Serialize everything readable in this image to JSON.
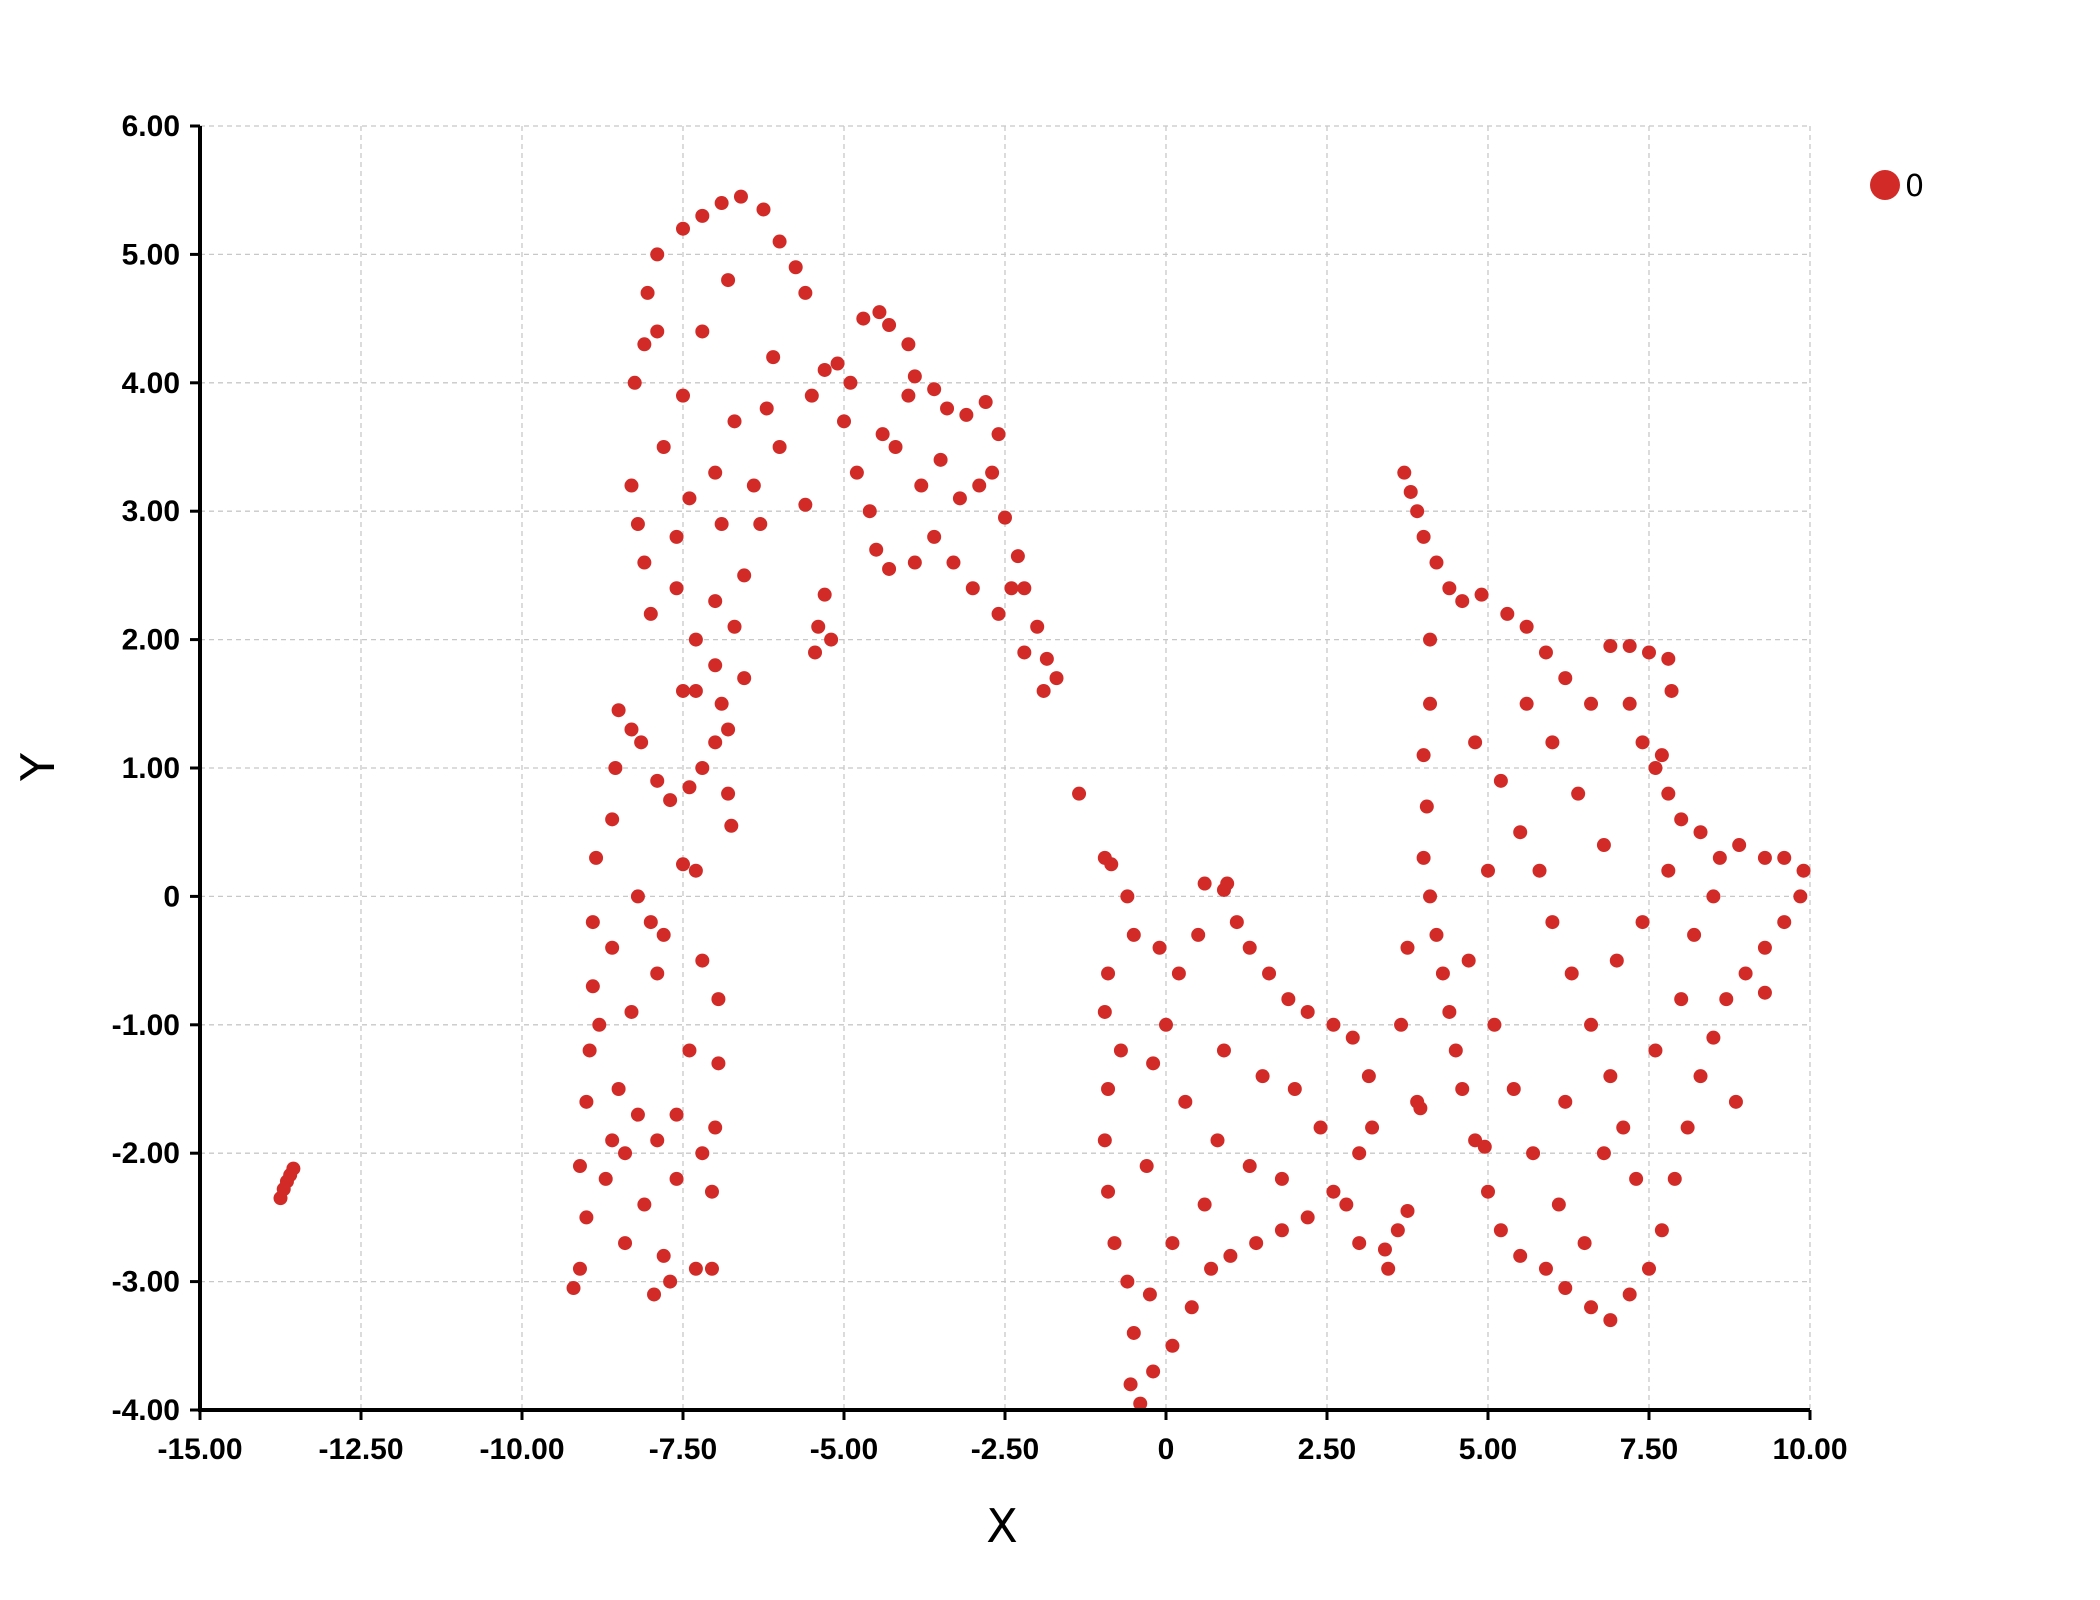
{
  "chart_data": {
    "type": "scatter",
    "title": "",
    "xlabel": "X",
    "ylabel": "Y",
    "xlim": [
      -15,
      10
    ],
    "ylim": [
      -4,
      6
    ],
    "x_ticks": [
      -15,
      -12.5,
      -10,
      -7.5,
      -5,
      -2.5,
      0,
      2.5,
      5,
      7.5,
      10
    ],
    "x_tick_labels": [
      "-15.00",
      "-12.50",
      "-10.00",
      "-7.50",
      "-5.00",
      "-2.50",
      "0",
      "2.50",
      "5.00",
      "7.50",
      "10.00"
    ],
    "y_ticks": [
      -4,
      -3,
      -2,
      -1,
      0,
      1,
      2,
      3,
      4,
      5,
      6
    ],
    "y_tick_labels": [
      "-4.00",
      "-3.00",
      "-2.00",
      "-1.00",
      "0",
      "1.00",
      "2.00",
      "3.00",
      "4.00",
      "5.00",
      "6.00"
    ],
    "grid": true,
    "legend": {
      "position": "top-right",
      "entries": [
        "0"
      ]
    },
    "series": [
      {
        "name": "0",
        "color": "#d22b27",
        "points": [
          [
            -13.75,
            -2.35
          ],
          [
            -13.7,
            -2.28
          ],
          [
            -13.65,
            -2.22
          ],
          [
            -13.6,
            -2.17
          ],
          [
            -13.55,
            -2.12
          ],
          [
            -9.2,
            -3.05
          ],
          [
            -9.1,
            -2.9
          ],
          [
            -9.0,
            -2.5
          ],
          [
            -9.1,
            -2.1
          ],
          [
            -9.0,
            -1.6
          ],
          [
            -8.95,
            -1.2
          ],
          [
            -8.9,
            -0.7
          ],
          [
            -8.9,
            -0.2
          ],
          [
            -8.85,
            0.3
          ],
          [
            -8.6,
            0.6
          ],
          [
            -8.55,
            1.0
          ],
          [
            -8.5,
            1.45
          ],
          [
            -8.3,
            1.3
          ],
          [
            -8.15,
            1.2
          ],
          [
            -7.95,
            -3.1
          ],
          [
            -7.8,
            -2.8
          ],
          [
            -7.7,
            -3.0
          ],
          [
            -7.3,
            -2.9
          ],
          [
            -7.05,
            -2.9
          ],
          [
            -7.05,
            -2.3
          ],
          [
            -7.0,
            -1.8
          ],
          [
            -6.95,
            -1.3
          ],
          [
            -6.95,
            -0.8
          ],
          [
            -7.2,
            -0.5
          ],
          [
            -7.5,
            0.25
          ],
          [
            -7.3,
            0.2
          ],
          [
            -7.8,
            -0.3
          ],
          [
            -8.3,
            -0.9
          ],
          [
            -8.5,
            -1.5
          ],
          [
            -8.7,
            -2.2
          ],
          [
            -8.4,
            -2.7
          ],
          [
            -8.1,
            -2.4
          ],
          [
            -7.6,
            -1.7
          ],
          [
            -7.4,
            -1.2
          ],
          [
            -7.9,
            -0.6
          ],
          [
            -8.4,
            -2.0
          ],
          [
            -8.6,
            -1.9
          ],
          [
            -8.2,
            -1.7
          ],
          [
            -7.9,
            -1.9
          ],
          [
            -7.6,
            -2.2
          ],
          [
            -7.2,
            -2.0
          ],
          [
            -8.8,
            -1.0
          ],
          [
            -8.6,
            -0.4
          ],
          [
            -8.2,
            0.0
          ],
          [
            -8.0,
            -0.2
          ],
          [
            -7.9,
            0.9
          ],
          [
            -7.7,
            0.75
          ],
          [
            -7.4,
            0.85
          ],
          [
            -7.2,
            1.0
          ],
          [
            -7.0,
            1.2
          ],
          [
            -6.9,
            1.5
          ],
          [
            -6.8,
            0.8
          ],
          [
            -6.75,
            0.55
          ],
          [
            -7.0,
            1.8
          ],
          [
            -7.3,
            1.6
          ],
          [
            -8.3,
            3.2
          ],
          [
            -8.25,
            4.0
          ],
          [
            -8.1,
            4.3
          ],
          [
            -8.05,
            4.7
          ],
          [
            -7.9,
            5.0
          ],
          [
            -7.5,
            5.2
          ],
          [
            -7.2,
            5.3
          ],
          [
            -6.9,
            5.4
          ],
          [
            -6.6,
            5.45
          ],
          [
            -6.25,
            5.35
          ],
          [
            -6.0,
            5.1
          ],
          [
            -5.75,
            4.9
          ],
          [
            -5.6,
            4.7
          ],
          [
            -6.1,
            4.2
          ],
          [
            -6.2,
            3.8
          ],
          [
            -6.0,
            3.5
          ],
          [
            -6.4,
            3.2
          ],
          [
            -6.3,
            2.9
          ],
          [
            -6.55,
            2.5
          ],
          [
            -6.7,
            2.1
          ],
          [
            -7.0,
            2.3
          ],
          [
            -7.3,
            2.0
          ],
          [
            -7.6,
            2.4
          ],
          [
            -8.0,
            2.2
          ],
          [
            -8.1,
            2.6
          ],
          [
            -8.2,
            2.9
          ],
          [
            -7.8,
            3.5
          ],
          [
            -7.5,
            3.9
          ],
          [
            -7.2,
            4.4
          ],
          [
            -6.8,
            4.8
          ],
          [
            -7.4,
            3.1
          ],
          [
            -7.0,
            3.3
          ],
          [
            -7.6,
            2.8
          ],
          [
            -7.9,
            4.4
          ],
          [
            -6.9,
            2.9
          ],
          [
            -6.7,
            3.7
          ],
          [
            -5.6,
            3.05
          ],
          [
            -6.55,
            1.7
          ],
          [
            -6.8,
            1.3
          ],
          [
            -7.5,
            1.6
          ],
          [
            -5.5,
            3.9
          ],
          [
            -5.3,
            4.1
          ],
          [
            -5.1,
            4.15
          ],
          [
            -4.9,
            4.0
          ],
          [
            -4.7,
            4.5
          ],
          [
            -4.45,
            4.55
          ],
          [
            -4.3,
            4.45
          ],
          [
            -4.0,
            4.3
          ],
          [
            -3.9,
            4.05
          ],
          [
            -3.6,
            3.95
          ],
          [
            -3.4,
            3.8
          ],
          [
            -3.1,
            3.75
          ],
          [
            -2.8,
            3.85
          ],
          [
            -2.6,
            3.6
          ],
          [
            -2.7,
            3.3
          ],
          [
            -2.5,
            2.95
          ],
          [
            -2.3,
            2.65
          ],
          [
            -2.4,
            2.4
          ],
          [
            -2.0,
            2.1
          ],
          [
            -1.85,
            1.85
          ],
          [
            -1.7,
            1.7
          ],
          [
            -1.9,
            1.6
          ],
          [
            -2.2,
            1.9
          ],
          [
            -2.6,
            2.2
          ],
          [
            -3.0,
            2.4
          ],
          [
            -3.3,
            2.6
          ],
          [
            -3.6,
            2.8
          ],
          [
            -3.9,
            2.6
          ],
          [
            -4.3,
            2.55
          ],
          [
            -4.5,
            2.7
          ],
          [
            -4.6,
            3.0
          ],
          [
            -4.8,
            3.3
          ],
          [
            -5.0,
            3.7
          ],
          [
            -4.2,
            3.5
          ],
          [
            -3.8,
            3.2
          ],
          [
            -3.2,
            3.1
          ],
          [
            -4.0,
            3.9
          ],
          [
            -4.4,
            3.6
          ],
          [
            -5.3,
            2.35
          ],
          [
            -5.4,
            2.1
          ],
          [
            -5.45,
            1.9
          ],
          [
            -5.2,
            2.0
          ],
          [
            -3.5,
            3.4
          ],
          [
            -2.9,
            3.2
          ],
          [
            -2.2,
            2.4
          ],
          [
            -1.35,
            0.8
          ],
          [
            -0.95,
            0.3
          ],
          [
            -0.85,
            0.25
          ],
          [
            -0.6,
            0.0
          ],
          [
            -0.5,
            -0.3
          ],
          [
            -0.9,
            -0.6
          ],
          [
            -0.95,
            -0.9
          ],
          [
            -0.7,
            -1.2
          ],
          [
            -0.9,
            -1.5
          ],
          [
            -0.95,
            -1.9
          ],
          [
            -0.9,
            -2.3
          ],
          [
            -0.8,
            -2.7
          ],
          [
            -0.6,
            -3.0
          ],
          [
            -0.5,
            -3.4
          ],
          [
            -0.55,
            -3.8
          ],
          [
            -0.4,
            -3.95
          ],
          [
            -0.2,
            -3.7
          ],
          [
            0.1,
            -3.5
          ],
          [
            0.4,
            -3.2
          ],
          [
            0.7,
            -2.9
          ],
          [
            1.0,
            -2.8
          ],
          [
            1.4,
            -2.7
          ],
          [
            1.8,
            -2.6
          ],
          [
            2.2,
            -2.5
          ],
          [
            2.6,
            -2.3
          ],
          [
            3.0,
            -2.0
          ],
          [
            3.2,
            -1.8
          ],
          [
            3.15,
            -1.4
          ],
          [
            2.9,
            -1.1
          ],
          [
            2.6,
            -1.0
          ],
          [
            2.2,
            -0.9
          ],
          [
            1.9,
            -0.8
          ],
          [
            1.6,
            -0.6
          ],
          [
            1.3,
            -0.4
          ],
          [
            1.1,
            -0.2
          ],
          [
            0.9,
            0.05
          ],
          [
            0.5,
            -0.3
          ],
          [
            0.2,
            -0.6
          ],
          [
            0.0,
            -1.0
          ],
          [
            -0.2,
            -1.3
          ],
          [
            0.3,
            -1.6
          ],
          [
            0.8,
            -1.9
          ],
          [
            1.3,
            -2.1
          ],
          [
            1.8,
            -2.2
          ],
          [
            2.4,
            -1.8
          ],
          [
            0.6,
            -2.4
          ],
          [
            0.1,
            -2.7
          ],
          [
            -0.3,
            -2.1
          ],
          [
            0.9,
            -1.2
          ],
          [
            1.5,
            -1.4
          ],
          [
            2.0,
            -1.5
          ],
          [
            3.0,
            -2.7
          ],
          [
            3.4,
            -2.75
          ],
          [
            3.6,
            -2.6
          ],
          [
            3.75,
            -2.45
          ],
          [
            3.45,
            -2.9
          ],
          [
            2.8,
            -2.4
          ],
          [
            -0.1,
            -0.4
          ],
          [
            0.6,
            0.1
          ],
          [
            0.95,
            0.1
          ],
          [
            -0.25,
            -3.1
          ],
          [
            3.7,
            3.3
          ],
          [
            3.8,
            3.15
          ],
          [
            3.9,
            3.0
          ],
          [
            4.0,
            2.8
          ],
          [
            4.2,
            2.6
          ],
          [
            4.4,
            2.4
          ],
          [
            4.6,
            2.3
          ],
          [
            4.9,
            2.35
          ],
          [
            5.3,
            2.2
          ],
          [
            5.6,
            2.1
          ],
          [
            5.9,
            1.9
          ],
          [
            6.2,
            1.7
          ],
          [
            6.6,
            1.5
          ],
          [
            6.9,
            1.95
          ],
          [
            7.2,
            1.95
          ],
          [
            7.5,
            1.9
          ],
          [
            7.8,
            1.85
          ],
          [
            7.85,
            1.6
          ],
          [
            7.4,
            1.2
          ],
          [
            7.6,
            1.0
          ],
          [
            7.8,
            0.8
          ],
          [
            8.0,
            0.6
          ],
          [
            8.3,
            0.5
          ],
          [
            8.6,
            0.3
          ],
          [
            8.9,
            0.4
          ],
          [
            9.3,
            0.3
          ],
          [
            9.6,
            0.3
          ],
          [
            9.9,
            0.2
          ],
          [
            9.85,
            0.0
          ],
          [
            9.6,
            -0.2
          ],
          [
            9.3,
            -0.4
          ],
          [
            9.0,
            -0.6
          ],
          [
            8.7,
            -0.8
          ],
          [
            8.5,
            -1.1
          ],
          [
            8.3,
            -1.4
          ],
          [
            8.1,
            -1.8
          ],
          [
            7.9,
            -2.2
          ],
          [
            7.7,
            -2.6
          ],
          [
            7.5,
            -2.9
          ],
          [
            7.2,
            -3.1
          ],
          [
            6.9,
            -3.3
          ],
          [
            6.6,
            -3.2
          ],
          [
            6.2,
            -3.05
          ],
          [
            5.9,
            -2.9
          ],
          [
            5.5,
            -2.8
          ],
          [
            5.2,
            -2.6
          ],
          [
            5.0,
            -2.3
          ],
          [
            4.8,
            -1.9
          ],
          [
            4.6,
            -1.5
          ],
          [
            4.5,
            -1.2
          ],
          [
            4.4,
            -0.9
          ],
          [
            4.3,
            -0.6
          ],
          [
            4.2,
            -0.3
          ],
          [
            4.1,
            0.0
          ],
          [
            4.0,
            0.3
          ],
          [
            4.05,
            0.7
          ],
          [
            4.0,
            1.1
          ],
          [
            4.1,
            1.5
          ],
          [
            4.1,
            2.0
          ],
          [
            4.8,
            1.2
          ],
          [
            5.2,
            0.9
          ],
          [
            5.5,
            0.5
          ],
          [
            5.8,
            0.2
          ],
          [
            6.0,
            -0.2
          ],
          [
            6.3,
            -0.6
          ],
          [
            6.6,
            -1.0
          ],
          [
            6.9,
            -1.4
          ],
          [
            7.1,
            -1.8
          ],
          [
            7.3,
            -2.2
          ],
          [
            5.4,
            -1.5
          ],
          [
            5.7,
            -2.0
          ],
          [
            6.1,
            -2.4
          ],
          [
            6.5,
            -2.7
          ],
          [
            7.0,
            -0.5
          ],
          [
            7.4,
            -0.2
          ],
          [
            7.8,
            0.2
          ],
          [
            8.2,
            -0.3
          ],
          [
            8.5,
            0.0
          ],
          [
            6.8,
            0.4
          ],
          [
            6.4,
            0.8
          ],
          [
            6.0,
            1.2
          ],
          [
            5.6,
            1.5
          ],
          [
            5.0,
            0.2
          ],
          [
            4.7,
            -0.5
          ],
          [
            5.1,
            -1.0
          ],
          [
            6.2,
            -1.6
          ],
          [
            6.8,
            -2.0
          ],
          [
            7.6,
            -1.2
          ],
          [
            8.0,
            -0.8
          ],
          [
            3.9,
            -1.6
          ],
          [
            3.95,
            -1.65
          ],
          [
            3.75,
            -0.4
          ],
          [
            3.65,
            -1.0
          ],
          [
            4.95,
            -1.95
          ],
          [
            8.85,
            -1.6
          ],
          [
            9.3,
            -0.75
          ],
          [
            7.2,
            1.5
          ],
          [
            7.7,
            1.1
          ]
        ]
      }
    ]
  }
}
